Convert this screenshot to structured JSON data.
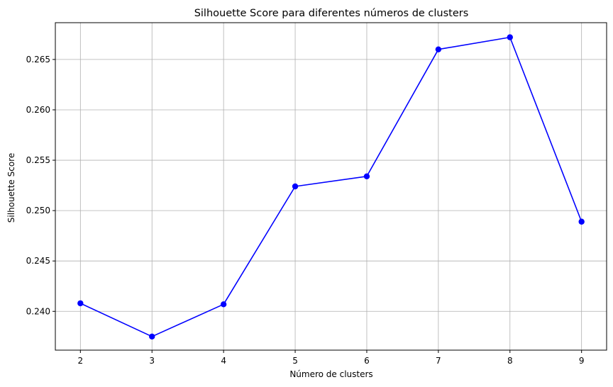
{
  "chart_data": {
    "type": "line",
    "title": "Silhouette Score para diferentes números de clusters",
    "xlabel": "Número de clusters",
    "ylabel": "Silhouette Score",
    "x": [
      2,
      3,
      4,
      5,
      6,
      7,
      8,
      9
    ],
    "series": [
      {
        "values": [
          0.2408,
          0.2375,
          0.2407,
          0.2524,
          0.2534,
          0.266,
          0.2672,
          0.2489
        ],
        "color": "#0000ff",
        "marker": "circle"
      }
    ],
    "xlim": [
      1.65,
      9.35
    ],
    "ylim": [
      0.23615,
      0.26865
    ],
    "x_ticks": [
      "2",
      "3",
      "4",
      "5",
      "6",
      "7",
      "8",
      "9"
    ],
    "y_ticks": [
      "0.240",
      "0.245",
      "0.250",
      "0.255",
      "0.260",
      "0.265"
    ],
    "grid": true,
    "colors": {
      "line": "#0000ff",
      "grid": "#b0b0b0",
      "axes": "#000000"
    }
  }
}
